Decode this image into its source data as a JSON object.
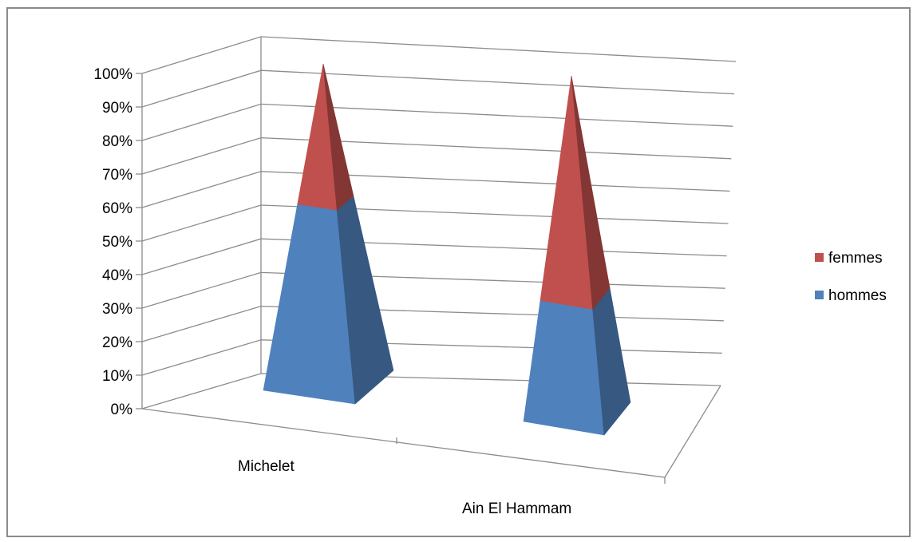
{
  "chart_data": {
    "type": "bar",
    "subtype": "3d-pyramid-stacked-100-percent",
    "categories": [
      "Michelet",
      "Ain El Hammam"
    ],
    "series": [
      {
        "name": "hommes",
        "values": [
          0.57,
          0.35
        ],
        "color": "#4f81bd"
      },
      {
        "name": "femmes",
        "values": [
          0.43,
          0.65
        ],
        "color": "#c0504d"
      }
    ],
    "y_ticks": [
      "0%",
      "10%",
      "20%",
      "30%",
      "40%",
      "50%",
      "60%",
      "70%",
      "80%",
      "90%",
      "100%"
    ],
    "ylim": [
      0,
      1
    ],
    "grid": true,
    "legend_position": "right",
    "legend_order": [
      "femmes",
      "hommes"
    ]
  }
}
